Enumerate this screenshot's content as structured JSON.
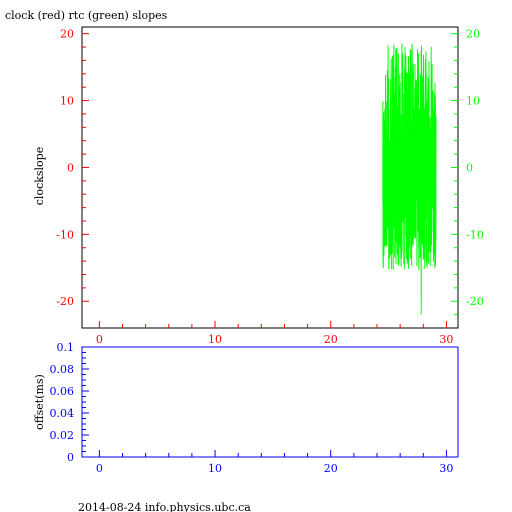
{
  "title": "clock (red) rtc (green) slopes",
  "footer": "2014-08-24 info.physics.ubc.ca",
  "colors": {
    "red": "#ff0000",
    "green": "#00ff00",
    "blue": "#0000ff",
    "black": "#000000"
  },
  "chart_data": [
    {
      "type": "line",
      "xlim": [
        -1.5,
        31
      ],
      "ylim": [
        -24,
        21
      ],
      "ylabel": "clockslope",
      "x_ticks": [
        "0",
        "10",
        "20",
        "30"
      ],
      "y_ticks_left": [
        "20",
        "10",
        "0",
        "-10",
        "-20"
      ],
      "y_ticks_right": [
        "20",
        "10",
        "0",
        "-10",
        "-20"
      ],
      "series": [
        {
          "name": "rtc",
          "color": "#00ff00",
          "x_range": [
            24.5,
            29.1
          ],
          "y_band": [
            -12,
            10
          ],
          "y_extremes": [
            -22,
            18.5
          ]
        }
      ]
    },
    {
      "type": "line",
      "xlim": [
        -1.5,
        31
      ],
      "ylim": [
        0,
        0.1
      ],
      "ylabel": "offset(ms)",
      "x_ticks": [
        "0",
        "10",
        "20",
        "30"
      ],
      "y_ticks": [
        "0.1",
        "0.08",
        "0.06",
        "0.04",
        "0.02",
        "0"
      ],
      "series": []
    }
  ]
}
